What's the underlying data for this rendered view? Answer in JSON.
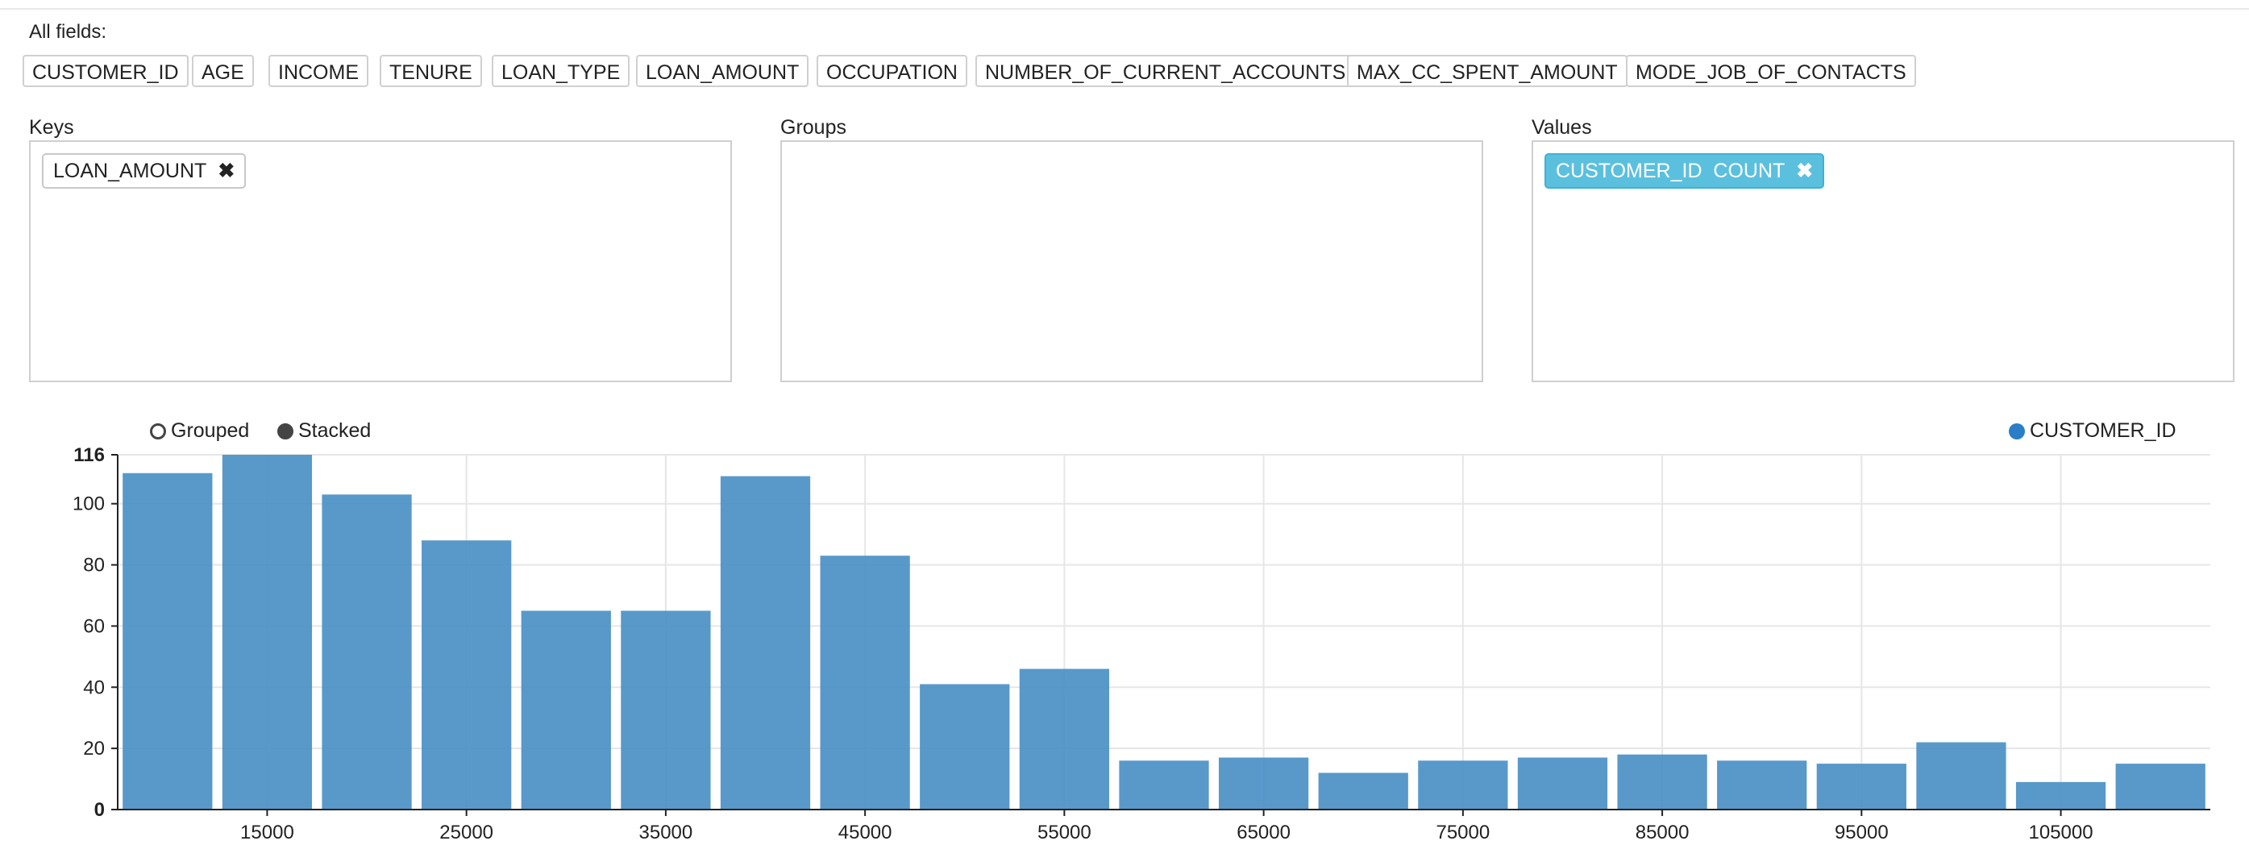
{
  "header": {
    "all_fields_label": "All fields:"
  },
  "fields": [
    "CUSTOMER_ID",
    "AGE",
    "INCOME",
    "TENURE",
    "LOAN_TYPE",
    "LOAN_AMOUNT",
    "OCCUPATION",
    "NUMBER_OF_CURRENT_ACCOUNTS",
    "MAX_CC_SPENT_AMOUNT",
    "MODE_JOB_OF_CONTACTS"
  ],
  "panels": {
    "keys": {
      "label": "Keys",
      "chip": "LOAN_AMOUNT"
    },
    "groups": {
      "label": "Groups"
    },
    "values": {
      "label": "Values",
      "chip": "CUSTOMER_ID  COUNT"
    }
  },
  "controls": {
    "grouped_label": "Grouped",
    "stacked_label": "Stacked",
    "selected": "Stacked"
  },
  "icons": {
    "remove": "close-icon",
    "series": "circle-icon"
  },
  "colors": {
    "bar": "#4a90c6",
    "value_chip": "#5bc0de",
    "legend_dot": "#2a7ec8"
  },
  "chart_data": {
    "type": "bar",
    "legend": {
      "entries": [
        "CUSTOMER_ID"
      ],
      "placement": "top-right"
    },
    "x_tick_labels": [
      "15000",
      "25000",
      "35000",
      "45000",
      "55000",
      "65000",
      "75000",
      "85000",
      "95000",
      "105000"
    ],
    "x": [
      10000,
      15000,
      20000,
      25000,
      30000,
      35000,
      40000,
      45000,
      50000,
      55000,
      60000,
      65000,
      70000,
      75000,
      80000,
      85000,
      90000,
      95000,
      100000,
      105000,
      110000
    ],
    "series": [
      {
        "name": "CUSTOMER_ID",
        "values": [
          110,
          116,
          103,
          88,
          65,
          65,
          109,
          83,
          41,
          46,
          16,
          17,
          12,
          16,
          17,
          18,
          16,
          15,
          22,
          9,
          15
        ]
      }
    ],
    "y_ticks": [
      0,
      20,
      40,
      60,
      80,
      100,
      116
    ],
    "ylim": [
      0,
      116
    ],
    "grid": true
  }
}
